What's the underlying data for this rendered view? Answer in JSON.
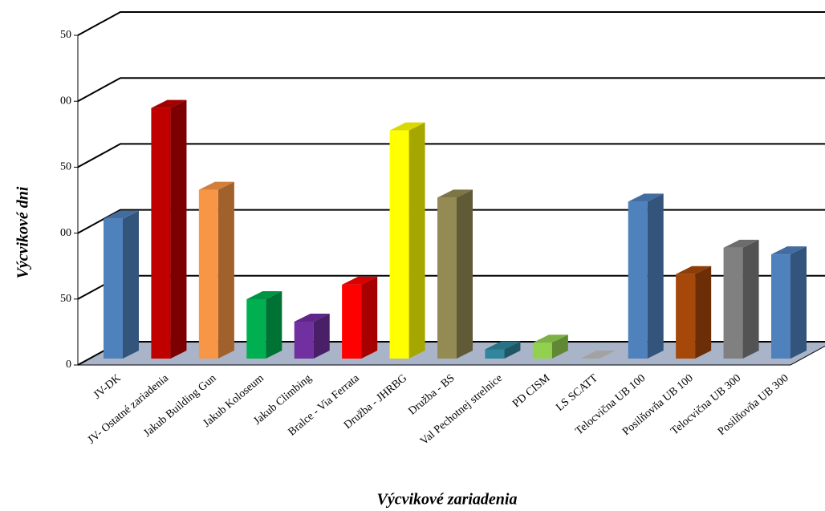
{
  "chart_data": {
    "type": "bar3d",
    "y_label": "Výcvikové dni",
    "x_label": "Výcvikové zariadenia",
    "categories": [
      "JV-DK",
      "JV- Ostatné zariadenia",
      "Jakub Building Gun",
      "Jakub Koloseum",
      "Jakub Climbing",
      "Bralce - Via Ferrata",
      "Družba - JHRBG",
      "Družba - BS",
      "Val Pechotnej strelnice",
      "PD CISM",
      "LS SCATT",
      "Telocvična UB 100",
      "Posilňovňa UB 100",
      "Telocvična UB 300",
      "Posilňovňa UB 300"
    ],
    "values": [
      106,
      190,
      128,
      45,
      28,
      56,
      173,
      122,
      7,
      12,
      0,
      119,
      64,
      84,
      79
    ],
    "colors": [
      "#4f81bd",
      "#c00000",
      "#f79646",
      "#00b050",
      "#7030a0",
      "#ff0000",
      "#ffff00",
      "#948a54",
      "#31859c",
      "#92d050",
      "#bfbfbf",
      "#4f81bd",
      "#a5480a",
      "#808080",
      "#4f81bd"
    ],
    "ylim": [
      0,
      250
    ],
    "yticks": [
      0,
      50,
      {
        "value": 100,
        "label": "00"
      },
      {
        "value": 150,
        "label": "50"
      },
      {
        "value": 200,
        "label": "00"
      },
      {
        "value": 250,
        "label": "50"
      }
    ],
    "grid": true
  }
}
